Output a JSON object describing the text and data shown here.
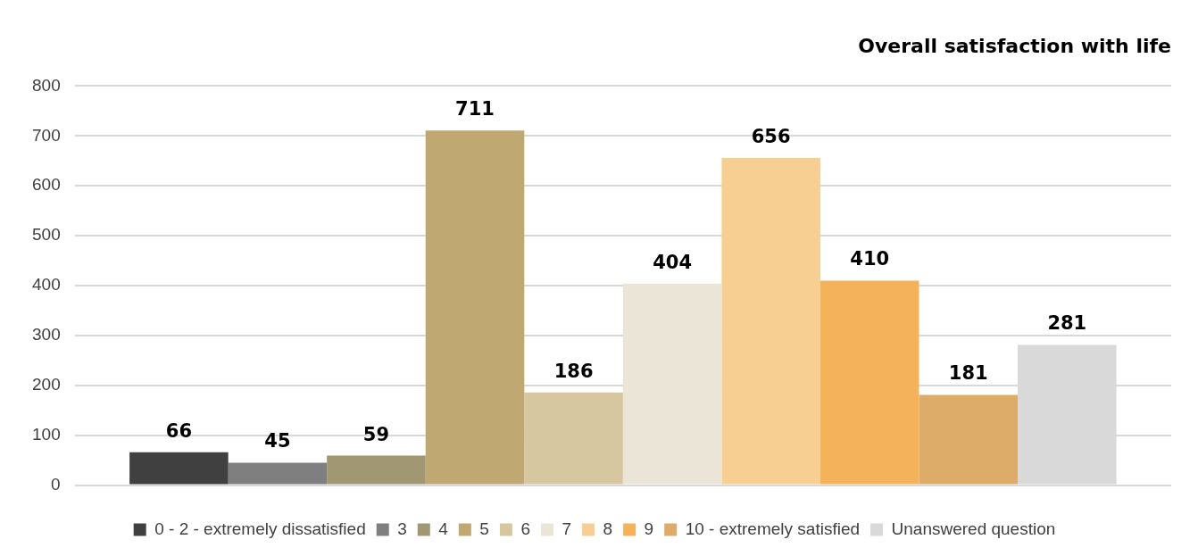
{
  "chart_data": {
    "type": "bar",
    "title": "Overall satisfaction with life",
    "categories": [
      null
    ],
    "series": [
      {
        "name": "0 - 2 - extremely dissatisfied",
        "color": "#404040",
        "values": [
          66
        ]
      },
      {
        "name": "3",
        "color": "#7f7f7f",
        "values": [
          45
        ]
      },
      {
        "name": "4",
        "color": "#a29773",
        "values": [
          59
        ]
      },
      {
        "name": "5",
        "color": "#c0a872",
        "values": [
          711
        ]
      },
      {
        "name": "6",
        "color": "#d6c7a0",
        "values": [
          186
        ]
      },
      {
        "name": "7",
        "color": "#ebe5d7",
        "values": [
          404
        ]
      },
      {
        "name": "8",
        "color": "#f7cf92",
        "values": [
          656
        ]
      },
      {
        "name": "9",
        "color": "#f4b35a",
        "values": [
          410
        ]
      },
      {
        "name": "10 - extremely satisfied",
        "color": "#dcac68",
        "values": [
          181
        ]
      },
      {
        "name": "Unanswered question",
        "color": "#d9d9d9",
        "values": [
          281
        ]
      }
    ],
    "ylim": [
      0,
      800
    ],
    "yticks": [
      0,
      100,
      200,
      300,
      400,
      500,
      600,
      700,
      800
    ],
    "grid": "y",
    "legend": "bottom",
    "data_labels": true
  }
}
